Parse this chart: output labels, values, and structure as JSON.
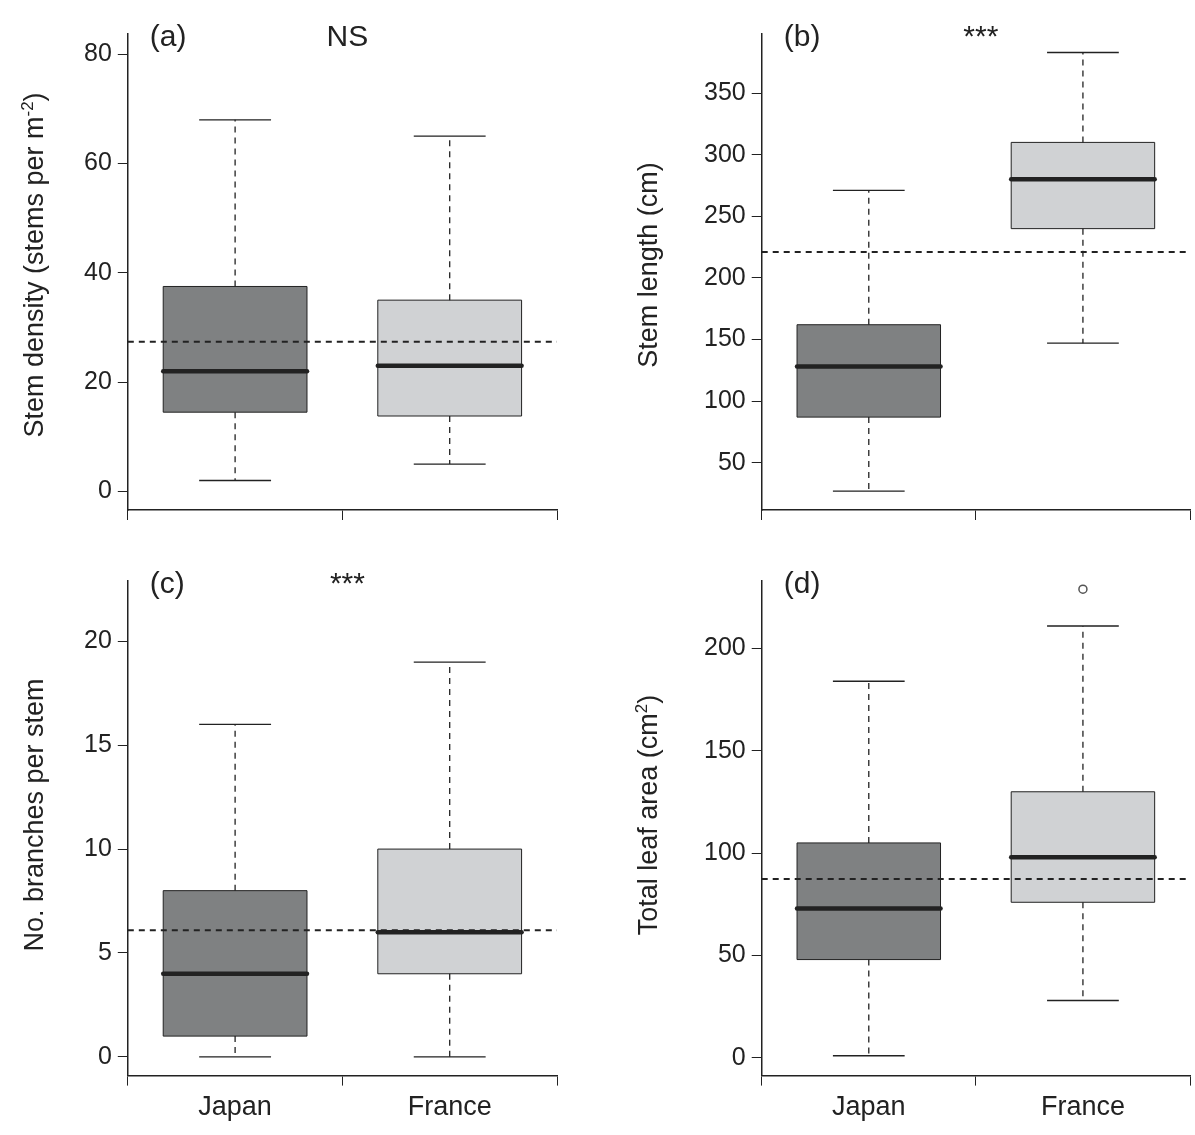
{
  "chart_data": [
    {
      "type": "box",
      "ylabel": "Stem density (stems per m$^{-2}$)",
      "categories": [
        null,
        null
      ],
      "colors": [
        "#7f8182",
        "#d0d2d4"
      ],
      "boxes": [
        {
          "low": 2,
          "q1": 14.5,
          "median": 22,
          "q3": 37.5,
          "high": 68
        },
        {
          "low": 5,
          "q1": 13.8,
          "median": 23,
          "q3": 35,
          "high": 65
        }
      ],
      "ylim": [
        -3.4,
        83.7
      ],
      "yticks": [
        0,
        20,
        40,
        60,
        80
      ],
      "ref_lines": [
        {
          "axis": "y",
          "value": 27.4,
          "line_style": "dashed"
        }
      ],
      "annotations": [
        "(a)",
        "NS"
      ],
      "tick_labels": "y"
    },
    {
      "type": "box",
      "ylabel": "Stem length (cm)",
      "categories": [
        null,
        null
      ],
      "colors": [
        "#7f8182",
        "#d0d2d4"
      ],
      "boxes": [
        {
          "low": 27,
          "q1": 87,
          "median": 128,
          "q3": 162,
          "high": 271
        },
        {
          "low": 147,
          "q1": 240,
          "median": 280,
          "q3": 310,
          "high": 383
        }
      ],
      "ylim": [
        11.6,
        398
      ],
      "yticks": [
        50,
        100,
        150,
        200,
        250,
        300,
        350
      ],
      "ref_lines": [
        {
          "axis": "y",
          "value": 221,
          "line_style": "dashed"
        }
      ],
      "annotations": [
        "(b)",
        "***"
      ],
      "tick_labels": "y"
    },
    {
      "type": "box",
      "ylabel": "No. branches per stem",
      "categories": [
        "Japan",
        "France"
      ],
      "colors": [
        "#7f8182",
        "#d0d2d4"
      ],
      "boxes": [
        {
          "low": 0,
          "q1": 1,
          "median": 4,
          "q3": 8,
          "high": 16
        },
        {
          "low": 0,
          "q1": 4,
          "median": 6,
          "q3": 10,
          "high": 19
        }
      ],
      "ylim": [
        -0.9,
        22.9
      ],
      "yticks": [
        0,
        5,
        10,
        15,
        20
      ],
      "ref_lines": [
        {
          "axis": "y",
          "value": 6.1,
          "line_style": "dashed"
        }
      ],
      "annotations": [
        "(c)",
        "***"
      ]
    },
    {
      "type": "box",
      "ylabel": "Total leaf area (cm$^{2}$)",
      "categories": [
        "Japan",
        "France"
      ],
      "colors": [
        "#7f8182",
        "#d0d2d4"
      ],
      "boxes": [
        {
          "low": 1,
          "q1": 48,
          "median": 73,
          "q3": 105,
          "high": 184
        },
        {
          "low": 28,
          "q1": 76,
          "median": 98,
          "q3": 130,
          "high": 211,
          "outliers": [
            229
          ]
        }
      ],
      "ylim": [
        -8.7,
        233
      ],
      "yticks": [
        0,
        50,
        100,
        150,
        200
      ],
      "ref_lines": [
        {
          "axis": "y",
          "value": 87.4,
          "line_style": "dashed"
        }
      ],
      "annotations": [
        "(d)"
      ]
    }
  ]
}
